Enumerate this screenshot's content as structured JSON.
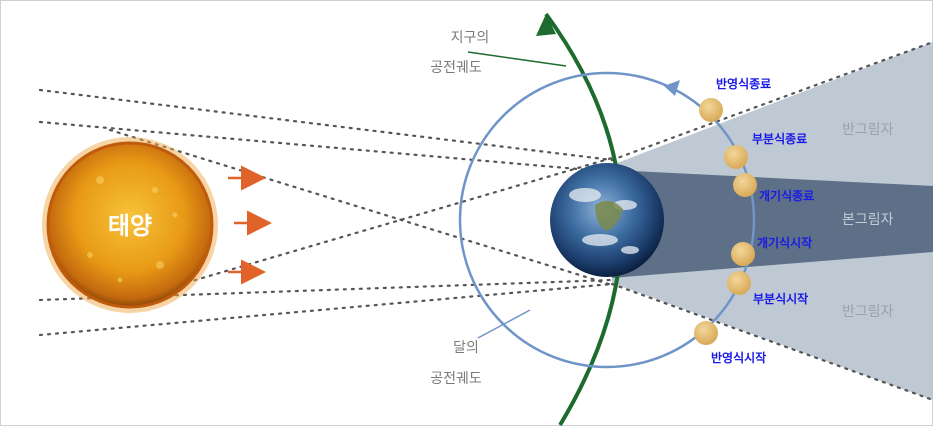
{
  "sun": {
    "label": "태양",
    "color": "#e8a21e"
  },
  "earth_orbit_label": [
    "지구의",
    "공전궤도"
  ],
  "moon_orbit_label": [
    "달의",
    "공전궤도"
  ],
  "shadow_labels": {
    "penumbra_top": "반그림자",
    "umbra": "본그림자",
    "penumbra_bottom": "반그림자"
  },
  "eclipse_phases": [
    {
      "id": "penumbral-end",
      "label": "반영식종료"
    },
    {
      "id": "partial-end",
      "label": "부분식종료"
    },
    {
      "id": "total-end",
      "label": "개기식종료"
    },
    {
      "id": "total-start",
      "label": "개기식시작"
    },
    {
      "id": "partial-start",
      "label": "부분식시작"
    },
    {
      "id": "penumbral-start",
      "label": "반영식시작"
    }
  ],
  "colors": {
    "penumbra": "#b7c3cf",
    "umbra": "#5d7087",
    "moon": "#e8c27a",
    "moon_orbit": "#6f95c8",
    "earth_orbit": "#1d6b2e",
    "phase_text": "#1a1ae6",
    "arrow": "#e0642a",
    "shadow_label": "#9aa2ac",
    "label_gray": "#7a7a7a"
  }
}
